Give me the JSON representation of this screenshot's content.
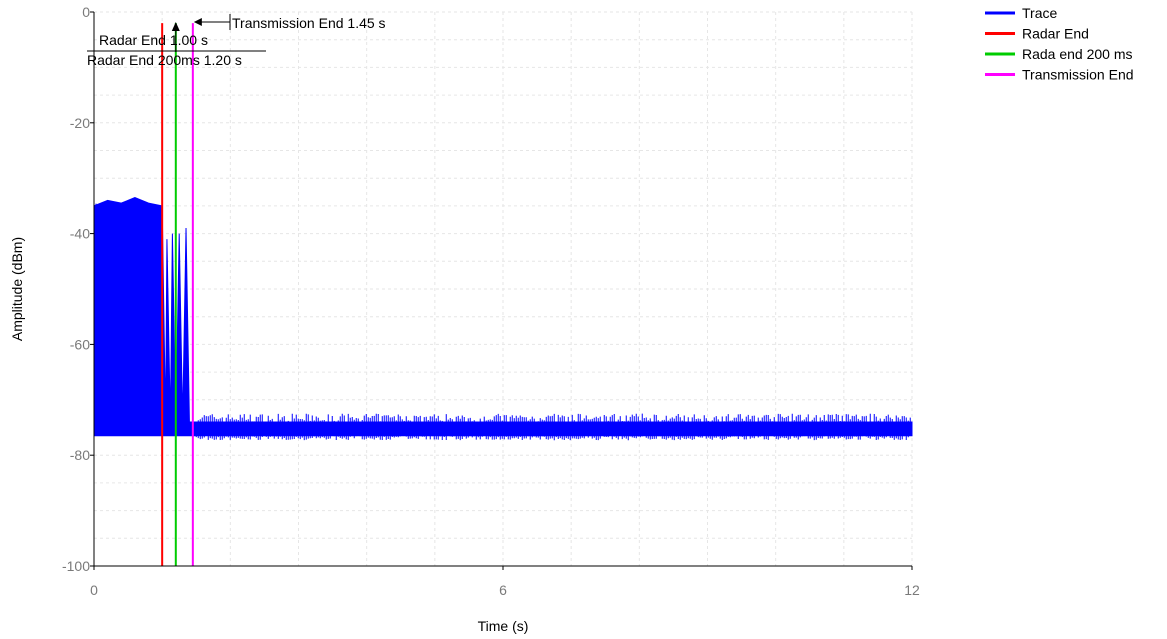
{
  "chart_data": {
    "type": "line",
    "title": "",
    "xlabel": "Time (s)",
    "ylabel": "Amplitude (dBm)",
    "xlim": [
      0,
      12
    ],
    "ylim": [
      -100,
      0
    ],
    "x_ticks": [
      0,
      6,
      12
    ],
    "y_ticks": [
      0,
      -20,
      -40,
      -60,
      -80,
      -100
    ],
    "grid": true,
    "legend_position": "top-right",
    "series": [
      {
        "name": "Trace",
        "color": "#0000ff",
        "x": [
          0,
          0.2,
          0.4,
          0.6,
          0.8,
          1.0,
          1.05,
          1.07,
          1.12,
          1.15,
          1.2,
          1.25,
          1.3,
          1.35,
          1.4,
          1.45,
          1.5,
          2.0,
          3.0,
          4.0,
          4.9,
          5.0,
          5.5,
          6.0,
          7.0,
          8.0,
          9.0,
          10.0,
          11.0,
          12.0
        ],
        "upper": [
          -35,
          -34,
          -34.5,
          -33.5,
          -34.5,
          -35,
          -74,
          -41,
          -74,
          -40,
          -74,
          -40,
          -74,
          -39,
          -74,
          -74,
          -74,
          -74,
          -74,
          -74,
          -74,
          -74,
          -74,
          -74,
          -74,
          -74,
          -74,
          -74,
          -74,
          -74
        ],
        "lower": [
          -76.5,
          -76.5,
          -76.5,
          -76.5,
          -76.5,
          -76.5,
          -76.5,
          -76.5,
          -76.5,
          -76.5,
          -76.5,
          -76.5,
          -76.5,
          -76.5,
          -76.5,
          -76.5,
          -76.5,
          -76.5,
          -76.5,
          -76.5,
          -76.5,
          -76.5,
          -76.5,
          -76.5,
          -76.5,
          -76.5,
          -76.5,
          -76.5,
          -76.5,
          -76.5
        ]
      },
      {
        "name": "Radar End",
        "color": "#ff0000",
        "x": [
          1.0,
          1.0
        ],
        "y": [
          -100,
          -2
        ]
      },
      {
        "name": "Rada end 200 ms",
        "color": "#00cc00",
        "x": [
          1.2,
          1.2
        ],
        "y": [
          -100,
          -2
        ]
      },
      {
        "name": "Transmission End",
        "color": "#ff00ff",
        "x": [
          1.45,
          1.45
        ],
        "y": [
          -100,
          -2
        ]
      }
    ],
    "annotations": [
      {
        "text": "Transmission End 1.45 s",
        "x": 1.45
      },
      {
        "text": "Radar End 1.00 s",
        "x": 1.0
      },
      {
        "text": "Radar End 200ms 1.20 s",
        "x": 1.2
      }
    ]
  }
}
